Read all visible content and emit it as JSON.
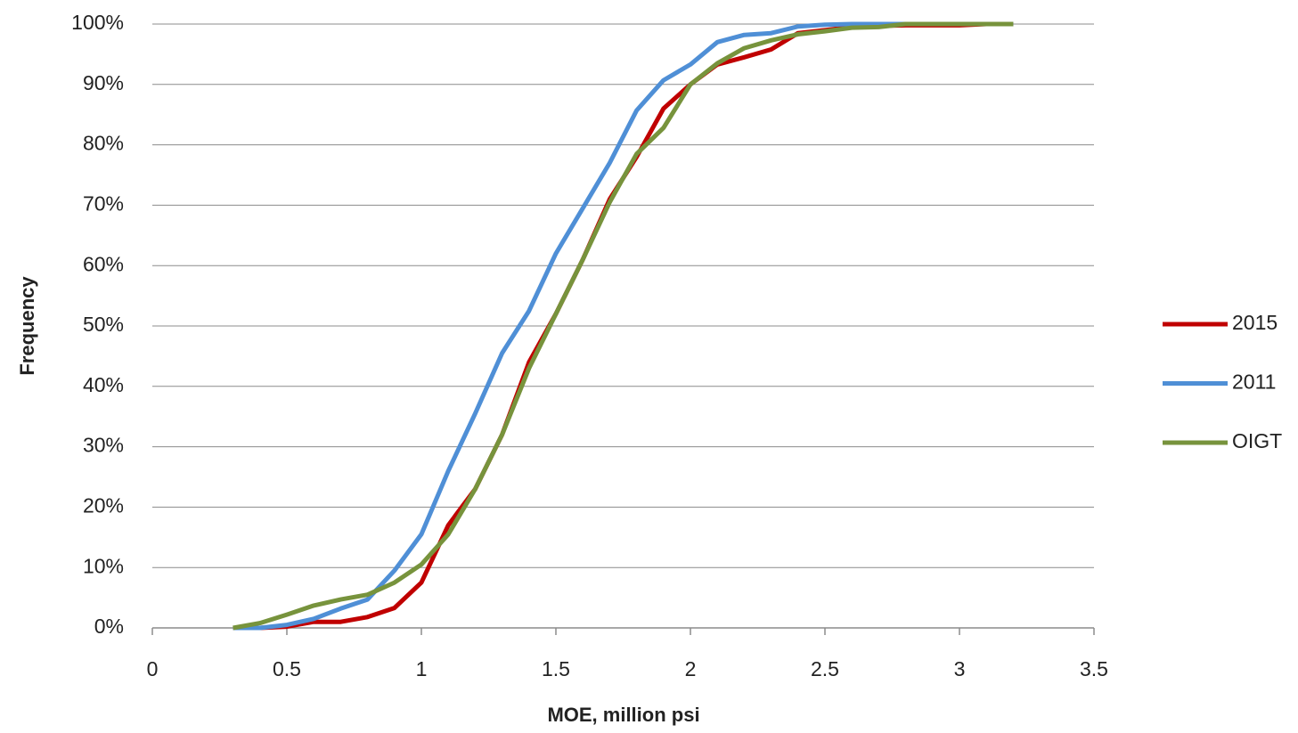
{
  "chart_data": {
    "type": "line",
    "x_label": "MOE, million psi",
    "y_label": "Frequency",
    "x": [
      0.3,
      0.4,
      0.5,
      0.6,
      0.7,
      0.8,
      0.9,
      1.0,
      1.1,
      1.2,
      1.3,
      1.4,
      1.5,
      1.6,
      1.7,
      1.8,
      1.9,
      2.0,
      2.1,
      2.2,
      2.3,
      2.4,
      2.5,
      2.6,
      2.7,
      2.8,
      2.9,
      3.0,
      3.1,
      3.2
    ],
    "series": [
      {
        "name": "2015",
        "color": "#c00000",
        "values": [
          0,
          0,
          0.2,
          1,
          1,
          1.8,
          3.3,
          7.5,
          17,
          23,
          32,
          44,
          52,
          61,
          71,
          78,
          86,
          90,
          93.3,
          94.5,
          95.8,
          98.5,
          99,
          99.5,
          99.7,
          99.8,
          99.8,
          99.8,
          100,
          100
        ]
      },
      {
        "name": "2011",
        "color": "#4f8fd6",
        "values": [
          0,
          0,
          0.5,
          1.5,
          3.2,
          4.7,
          9.5,
          15.5,
          26,
          35.5,
          45.5,
          52.5,
          62,
          69.5,
          77,
          85.7,
          90.7,
          93.3,
          97,
          98.2,
          98.5,
          99.6,
          99.9,
          100,
          100,
          100,
          100,
          100,
          100,
          100
        ]
      },
      {
        "name": "OIGT",
        "color": "#77933c",
        "values": [
          0,
          0.8,
          2.2,
          3.7,
          4.7,
          5.5,
          7.5,
          10.5,
          15.5,
          23,
          32,
          43,
          52,
          61,
          70.5,
          78.5,
          82.8,
          90,
          93.5,
          96,
          97.3,
          98.3,
          98.8,
          99.4,
          99.5,
          100,
          100,
          100,
          100,
          100
        ]
      }
    ],
    "xlim": [
      0,
      3.5
    ],
    "xticks": [
      0,
      0.5,
      1,
      1.5,
      2,
      2.5,
      3,
      3.5
    ],
    "ylim": [
      0,
      100
    ],
    "yticks": [
      {
        "value": 0,
        "label": "0%"
      },
      {
        "value": 10,
        "label": "10%"
      },
      {
        "value": 20,
        "label": "20%"
      },
      {
        "value": 30,
        "label": "30%"
      },
      {
        "value": 40,
        "label": "40%"
      },
      {
        "value": 50,
        "label": "50%"
      },
      {
        "value": 60,
        "label": "60%"
      },
      {
        "value": 70,
        "label": "70%"
      },
      {
        "value": 80,
        "label": "80%"
      },
      {
        "value": 90,
        "label": "90%"
      },
      {
        "value": 100,
        "label": "100%"
      }
    ],
    "grid": true,
    "legend": "right"
  }
}
